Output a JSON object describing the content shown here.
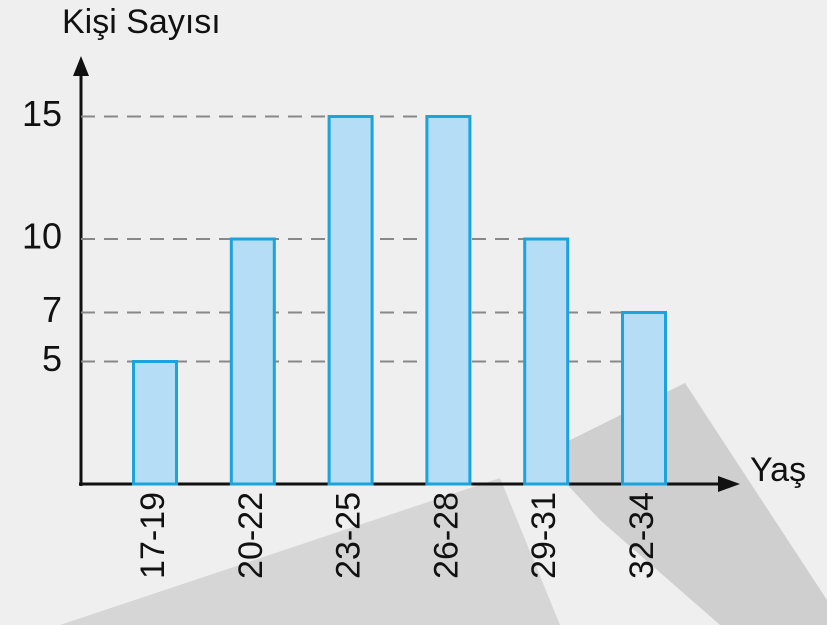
{
  "chart_data": {
    "type": "bar",
    "y_label": "Kişi Sayısı",
    "x_label": "Yaş",
    "categories": [
      "17-19",
      "20-22",
      "23-25",
      "26-28",
      "29-31",
      "32-34"
    ],
    "values": [
      5,
      10,
      15,
      15,
      10,
      7
    ],
    "color": "#b5ddf6",
    "edge_color": "#1aa3dc",
    "ylim": [
      0,
      16
    ],
    "yticks": [
      5,
      7,
      10,
      15
    ],
    "grid": true
  }
}
